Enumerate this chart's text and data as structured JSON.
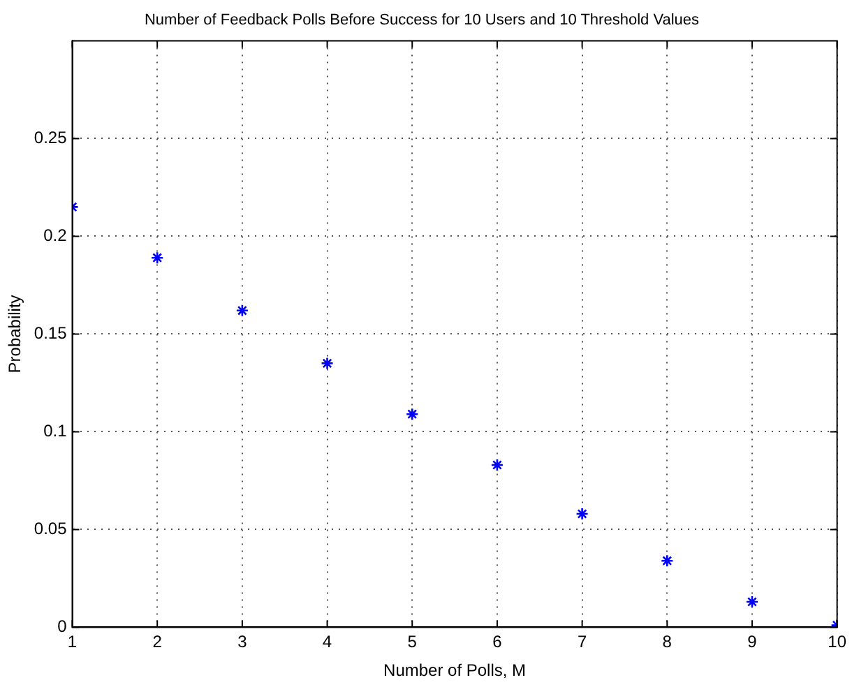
{
  "chart_data": {
    "type": "scatter",
    "title": "Number of Feedback Polls Before Success for 10 Users and 10 Threshold Values",
    "xlabel": "Number of Polls, M",
    "ylabel": "Probability",
    "x": [
      1,
      2,
      3,
      4,
      5,
      6,
      7,
      8,
      9,
      10
    ],
    "series": [
      {
        "color": "#0000ff",
        "values": [
          0.215,
          0.189,
          0.162,
          0.135,
          0.109,
          0.083,
          0.058,
          0.034,
          0.013,
          0.001
        ]
      }
    ],
    "xlim": [
      1,
      10
    ],
    "xticks": [
      1,
      2,
      3,
      4,
      5,
      6,
      7,
      8,
      9,
      10
    ],
    "ylim": [
      0,
      0.3
    ],
    "yticks": [
      0,
      0.05,
      0.1,
      0.15,
      0.2,
      0.25
    ],
    "grid": true,
    "legend": false,
    "marker": "cross"
  }
}
